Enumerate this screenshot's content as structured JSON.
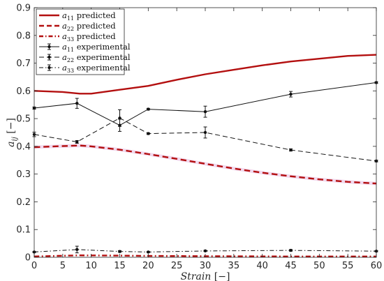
{
  "chart_data": {
    "type": "line",
    "xlabel": "Strain [−]",
    "ylabel": "a_ij [−]",
    "xlim": [
      0,
      60
    ],
    "ylim": [
      0,
      0.9
    ],
    "xticks": [
      "0",
      "5",
      "10",
      "15",
      "20",
      "25",
      "30",
      "35",
      "40",
      "45",
      "50",
      "55",
      "60"
    ],
    "yticks": [
      "0",
      "0.1",
      "0.2",
      "0.3",
      "0.4",
      "0.5",
      "0.6",
      "0.7",
      "0.8",
      "0.9"
    ],
    "grid": false,
    "legend_position": "top-left",
    "colors": {
      "predicted": "#b30f0f",
      "experimental": "#111111",
      "band": "#f2d9ee"
    },
    "series": [
      {
        "name": "a11 predicted",
        "style": "solid",
        "kind": "predicted",
        "x": [
          0,
          5,
          8,
          10,
          15,
          20,
          25,
          30,
          35,
          40,
          45,
          50,
          55,
          60
        ],
        "y": [
          0.6,
          0.596,
          0.59,
          0.59,
          0.604,
          0.618,
          0.64,
          0.66,
          0.676,
          0.692,
          0.706,
          0.716,
          0.726,
          0.73
        ]
      },
      {
        "name": "a22 predicted",
        "style": "dashed",
        "kind": "predicted",
        "x": [
          0,
          5,
          8,
          10,
          15,
          20,
          25,
          30,
          35,
          40,
          45,
          50,
          55,
          60
        ],
        "y": [
          0.397,
          0.401,
          0.403,
          0.4,
          0.388,
          0.372,
          0.355,
          0.337,
          0.32,
          0.305,
          0.292,
          0.281,
          0.272,
          0.266
        ]
      },
      {
        "name": "a33 predicted",
        "style": "dashdot",
        "kind": "predicted",
        "x": [
          0,
          8,
          15,
          20,
          30,
          45,
          60
        ],
        "y": [
          0.003,
          0.007,
          0.006,
          0.005,
          0.004,
          0.003,
          0.003
        ]
      },
      {
        "name": "a11 experimental",
        "style": "solid",
        "kind": "experimental",
        "x": [
          0,
          7.5,
          15,
          20,
          30,
          45,
          60
        ],
        "y": [
          0.538,
          0.555,
          0.476,
          0.534,
          0.525,
          0.588,
          0.63
        ],
        "err": [
          0.004,
          0.018,
          0.022,
          0.003,
          0.02,
          0.01,
          0.003
        ]
      },
      {
        "name": "a22 experimental",
        "style": "dashed",
        "kind": "experimental",
        "x": [
          0,
          7.5,
          15,
          20,
          30,
          45,
          60
        ],
        "y": [
          0.443,
          0.416,
          0.502,
          0.446,
          0.45,
          0.387,
          0.347
        ],
        "err": [
          0.008,
          0.005,
          0.03,
          0.003,
          0.02,
          0.004,
          0.003
        ]
      },
      {
        "name": "a33 experimental",
        "style": "dashdot",
        "kind": "experimental",
        "x": [
          0,
          7.5,
          15,
          20,
          30,
          45,
          60
        ],
        "y": [
          0.019,
          0.028,
          0.021,
          0.019,
          0.023,
          0.025,
          0.022
        ],
        "err": [
          0.002,
          0.012,
          0.003,
          0.002,
          0.002,
          0.003,
          0.002
        ]
      }
    ]
  },
  "legend": {
    "items": [
      {
        "main": "a",
        "sub": "11",
        "rest": " predicted"
      },
      {
        "main": "a",
        "sub": "22",
        "rest": " predicted"
      },
      {
        "main": "a",
        "sub": "33",
        "rest": " predicted"
      },
      {
        "main": "a",
        "sub": "11",
        "rest": " experimental"
      },
      {
        "main": "a",
        "sub": "22",
        "rest": " experimental"
      },
      {
        "main": "a",
        "sub": "33",
        "rest": " experimental"
      }
    ]
  }
}
